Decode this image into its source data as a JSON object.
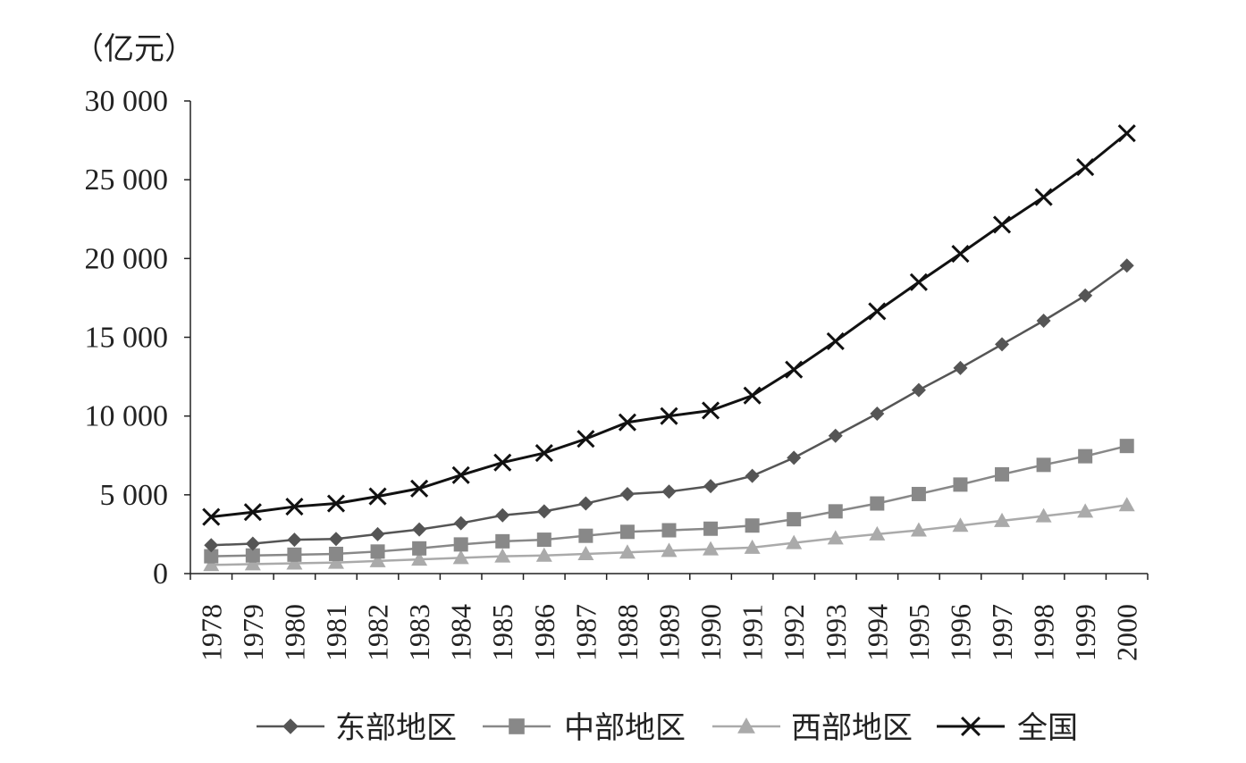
{
  "chart_data": {
    "type": "line",
    "unit_label": "（亿元）",
    "ylim": [
      0,
      30000
    ],
    "y_ticks": [
      0,
      5000,
      10000,
      15000,
      20000,
      25000,
      30000
    ],
    "y_tick_labels": [
      "0",
      "5 000",
      "10 000",
      "15 000",
      "20 000",
      "25 000",
      "30 000"
    ],
    "grid": false,
    "legend_position": "bottom",
    "categories": [
      "1978",
      "1979",
      "1980",
      "1981",
      "1982",
      "1983",
      "1984",
      "1985",
      "1986",
      "1987",
      "1988",
      "1989",
      "1990",
      "1991",
      "1992",
      "1993",
      "1994",
      "1995",
      "1996",
      "1997",
      "1998",
      "1999",
      "2000"
    ],
    "series": [
      {
        "name": "东部地区",
        "marker": "diamond",
        "color": "#555555",
        "values": [
          1800,
          1900,
          2150,
          2200,
          2500,
          2800,
          3200,
          3700,
          3950,
          4450,
          5050,
          5200,
          5550,
          6200,
          7350,
          8750,
          10150,
          11650,
          13050,
          14550,
          16050,
          17650,
          19550
        ]
      },
      {
        "name": "中部地区",
        "marker": "square",
        "color": "#888888",
        "values": [
          1100,
          1150,
          1200,
          1250,
          1400,
          1600,
          1850,
          2050,
          2150,
          2400,
          2650,
          2750,
          2850,
          3050,
          3450,
          3950,
          4450,
          5050,
          5650,
          6300,
          6900,
          7450,
          8100
        ]
      },
      {
        "name": "西部地区",
        "marker": "triangle",
        "color": "#aaaaaa",
        "values": [
          550,
          600,
          650,
          700,
          800,
          900,
          1000,
          1100,
          1150,
          1250,
          1350,
          1450,
          1550,
          1650,
          1950,
          2250,
          2500,
          2750,
          3050,
          3350,
          3650,
          3950,
          4350
        ]
      },
      {
        "name": "全国",
        "marker": "x",
        "color": "#111111",
        "values": [
          3600,
          3900,
          4250,
          4450,
          4900,
          5400,
          6250,
          7050,
          7650,
          8550,
          9600,
          10000,
          10350,
          11300,
          12950,
          14750,
          16650,
          18500,
          20300,
          22150,
          23900,
          25800,
          27950
        ]
      }
    ]
  }
}
